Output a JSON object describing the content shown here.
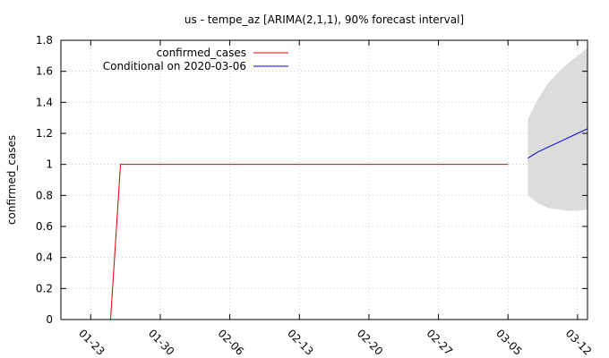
{
  "chart_data": {
    "type": "line",
    "title": "us - tempe_az [ARIMA(2,1,1), 90% forecast interval]",
    "xlabel": "",
    "ylabel": "confirmed_cases",
    "x_type": "date",
    "xlim": [
      "2020-01-20",
      "2020-03-13"
    ],
    "ylim": [
      0,
      1.8
    ],
    "x_ticks": [
      "2020-01-23",
      "2020-01-30",
      "2020-02-06",
      "2020-02-13",
      "2020-02-20",
      "2020-02-27",
      "2020-03-05",
      "2020-03-12"
    ],
    "x_tick_labels": [
      "01-23",
      "01-30",
      "02-06",
      "02-13",
      "02-20",
      "02-27",
      "03-05",
      "03-12"
    ],
    "y_ticks": [
      0,
      0.2,
      0.4,
      0.6,
      0.8,
      1,
      1.2,
      1.4,
      1.6,
      1.8
    ],
    "y_tick_labels": [
      "0",
      "0.2",
      "0.4",
      "0.6",
      "0.8",
      "1",
      "1.2",
      "1.4",
      "1.6",
      "1.8"
    ],
    "grid": true,
    "legend_position": "top-left",
    "series": [
      {
        "name": "confirmed_cases",
        "color": "#dd0000",
        "x": [
          "2020-01-25",
          "2020-01-26",
          "2020-03-05"
        ],
        "y": [
          0,
          1,
          1
        ]
      },
      {
        "name": "Conditional on 2020-03-06",
        "color": "#0000dd",
        "x": [
          "2020-03-07",
          "2020-03-08",
          "2020-03-09",
          "2020-03-10",
          "2020-03-11",
          "2020-03-12",
          "2020-03-13"
        ],
        "y": [
          1.04,
          1.08,
          1.11,
          1.14,
          1.17,
          1.2,
          1.23
        ]
      }
    ],
    "forecast_interval": {
      "color": "#dcdcdc",
      "x": [
        "2020-03-07",
        "2020-03-08",
        "2020-03-09",
        "2020-03-10",
        "2020-03-11",
        "2020-03-12",
        "2020-03-13"
      ],
      "lower": [
        0.8,
        0.75,
        0.72,
        0.71,
        0.7,
        0.7,
        0.71
      ],
      "upper": [
        1.29,
        1.42,
        1.52,
        1.59,
        1.65,
        1.7,
        1.75
      ]
    }
  }
}
